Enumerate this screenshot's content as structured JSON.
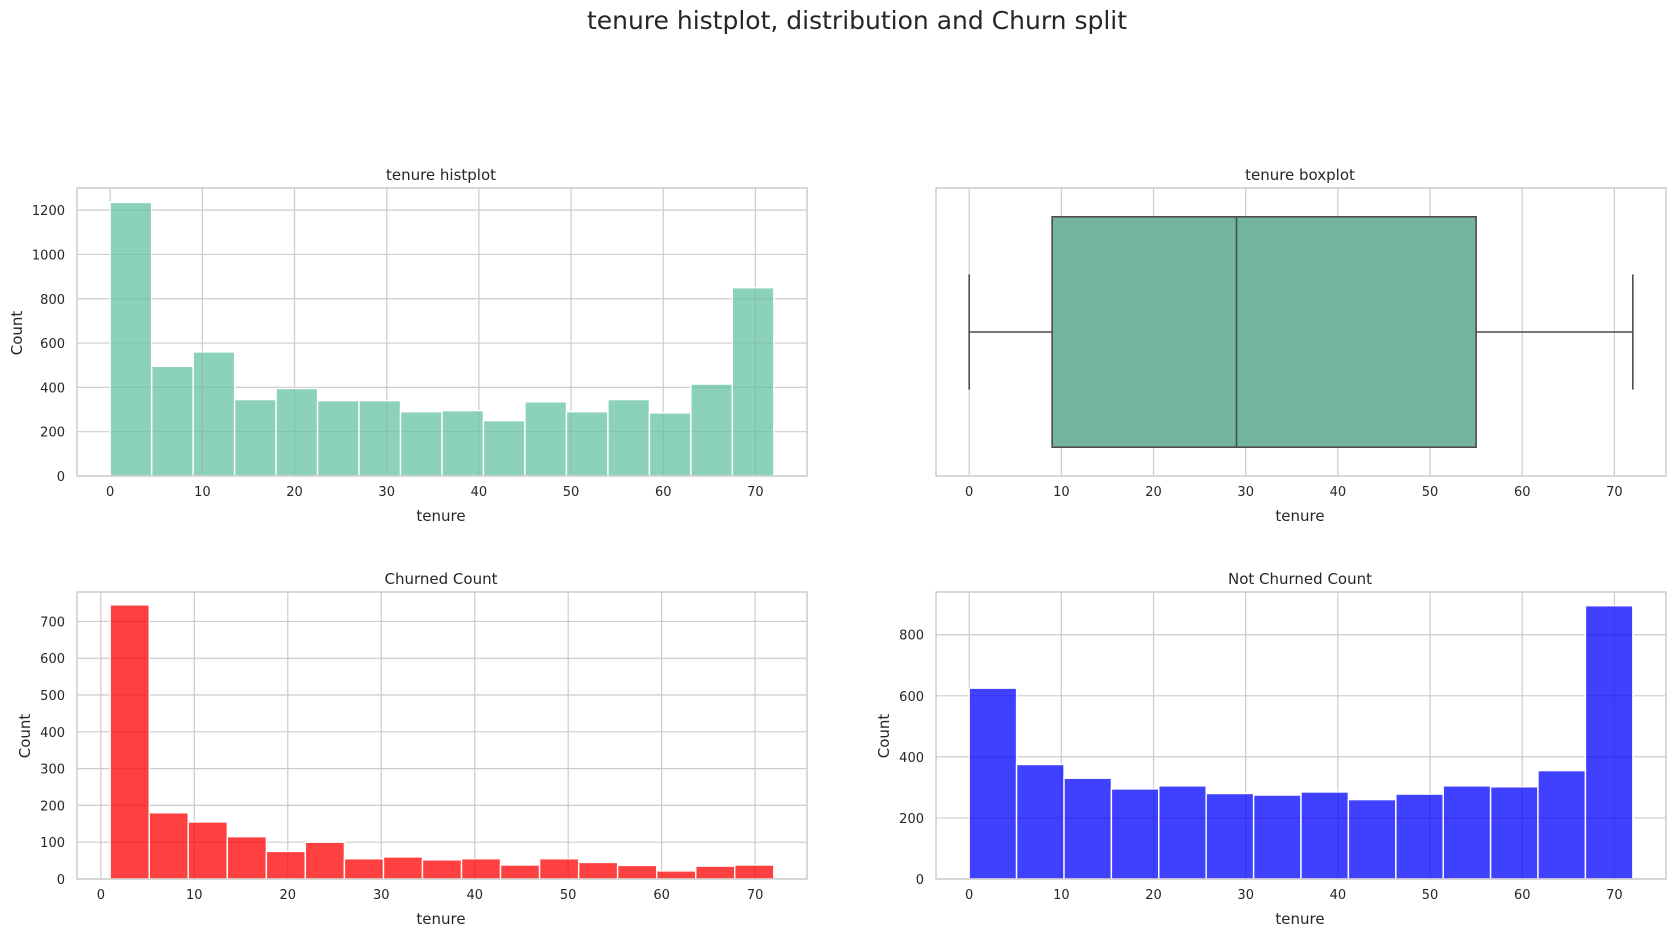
{
  "figure_title": "tenure histplot, distribution and Churn split",
  "chart_data": [
    {
      "type": "histogram",
      "title": "tenure histplot",
      "xlabel": "tenure",
      "ylabel": "Count",
      "xlim": [
        -3.6,
        75.6
      ],
      "ylim": [
        0,
        1300
      ],
      "xticks": [
        0,
        10,
        20,
        30,
        40,
        50,
        60,
        70
      ],
      "yticks": [
        0,
        200,
        400,
        600,
        800,
        1000,
        1200
      ],
      "bin_edges": [
        0,
        4.5,
        9,
        13.5,
        18,
        22.5,
        27,
        31.5,
        36,
        40.5,
        45,
        49.5,
        54,
        58.5,
        63,
        67.5,
        72
      ],
      "counts": [
        1235,
        495,
        560,
        345,
        395,
        340,
        340,
        290,
        295,
        250,
        335,
        290,
        345,
        285,
        415,
        850
      ],
      "color": "#66c2a5",
      "alpha": 0.75,
      "grid": true
    },
    {
      "type": "boxplot",
      "title": "tenure boxplot",
      "xlabel": "tenure",
      "xlim": [
        -3.6,
        75.6
      ],
      "xticks": [
        0,
        10,
        20,
        30,
        40,
        50,
        60,
        70
      ],
      "min": 0,
      "q1": 9,
      "median": 29,
      "q3": 55,
      "max": 72,
      "color": "#66c2a5",
      "grid": true
    },
    {
      "type": "histogram",
      "title": "Churned Count",
      "xlabel": "tenure",
      "ylabel": "Count",
      "xlim": [
        -2.55,
        75.55
      ],
      "ylim": [
        0,
        780
      ],
      "xticks": [
        0,
        10,
        20,
        30,
        40,
        50,
        60,
        70
      ],
      "yticks": [
        0,
        100,
        200,
        300,
        400,
        500,
        600,
        700
      ],
      "bin_edges": [
        1,
        5.18,
        9.35,
        13.53,
        17.71,
        21.88,
        26.06,
        30.24,
        34.41,
        38.59,
        42.76,
        46.94,
        51.12,
        55.29,
        59.47,
        63.65,
        67.82,
        72
      ],
      "counts": [
        745,
        180,
        155,
        115,
        75,
        100,
        55,
        60,
        52,
        55,
        38,
        55,
        45,
        37,
        22,
        35,
        38
      ],
      "color": "#ff0000",
      "alpha": 0.75,
      "grid": true
    },
    {
      "type": "histogram",
      "title": "Not Churned Count",
      "xlabel": "tenure",
      "ylabel": "Count",
      "xlim": [
        -3.6,
        75.6
      ],
      "ylim": [
        0,
        940
      ],
      "xticks": [
        0,
        10,
        20,
        30,
        40,
        50,
        60,
        70
      ],
      "yticks": [
        0,
        200,
        400,
        600,
        800
      ],
      "bin_edges": [
        0,
        5.14,
        10.29,
        15.43,
        20.57,
        25.71,
        30.86,
        36,
        41.14,
        46.29,
        51.43,
        56.57,
        61.71,
        66.86,
        72
      ],
      "counts": [
        625,
        375,
        330,
        295,
        305,
        280,
        275,
        285,
        260,
        278,
        305,
        302,
        355,
        895
      ],
      "color": "#0000ff",
      "alpha": 0.75,
      "grid": true
    }
  ]
}
